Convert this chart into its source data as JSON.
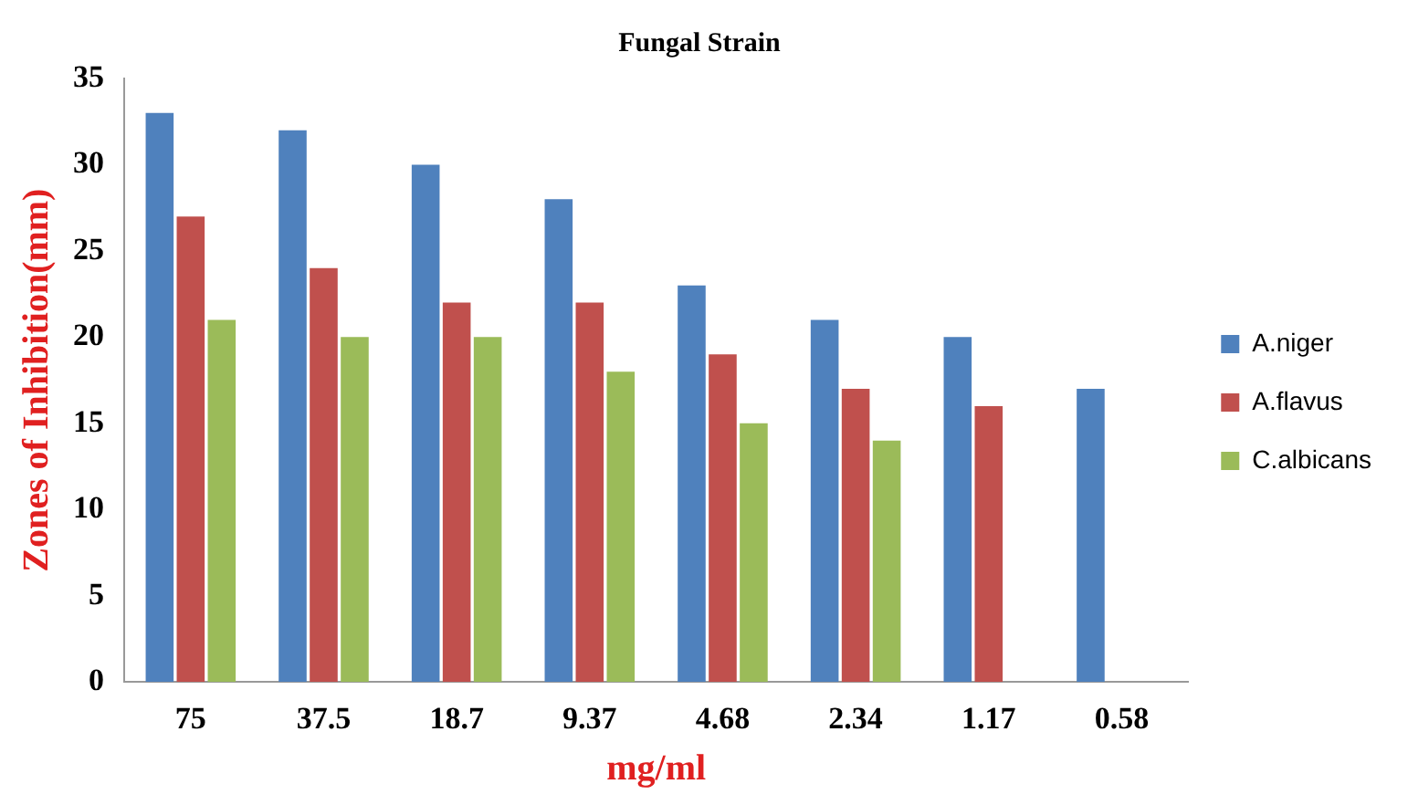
{
  "chart_data": {
    "type": "bar",
    "title": "Fungal Strain",
    "xlabel": "mg/ml",
    "ylabel": "Zones of Inhibition(mm)",
    "categories": [
      "75",
      "37.5",
      "18.7",
      "9.37",
      "4.68",
      "2.34",
      "1.17",
      "0.58"
    ],
    "series": [
      {
        "name": "A.niger",
        "color": "#4f81bd",
        "values": [
          33,
          32,
          30,
          28,
          23,
          21,
          20,
          17
        ]
      },
      {
        "name": "A.flavus",
        "color": "#c0504d",
        "values": [
          27,
          24,
          22,
          22,
          19,
          17,
          16,
          null
        ]
      },
      {
        "name": "C.albicans",
        "color": "#9bbb59",
        "values": [
          21,
          20,
          20,
          18,
          15,
          14,
          null,
          null
        ]
      }
    ],
    "ylim": [
      0,
      35
    ],
    "yticks": [
      0,
      5,
      10,
      15,
      20,
      25,
      30,
      35
    ],
    "grid": false,
    "legend": "right"
  }
}
